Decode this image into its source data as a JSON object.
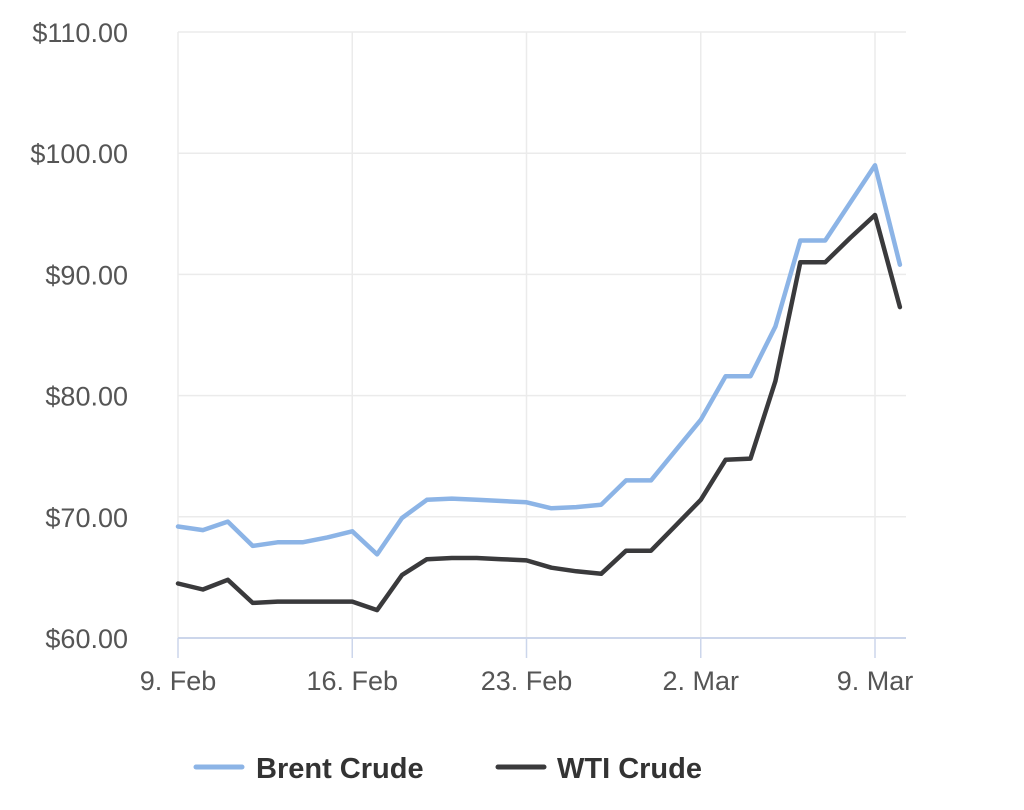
{
  "chart_data": {
    "type": "line",
    "x": [
      "2022-02-09",
      "2022-02-10",
      "2022-02-11",
      "2022-02-12",
      "2022-02-13",
      "2022-02-14",
      "2022-02-15",
      "2022-02-16",
      "2022-02-17",
      "2022-02-18",
      "2022-02-19",
      "2022-02-20",
      "2022-02-21",
      "2022-02-22",
      "2022-02-23",
      "2022-02-24",
      "2022-02-25",
      "2022-02-26",
      "2022-02-27",
      "2022-02-28",
      "2022-03-01",
      "2022-03-02",
      "2022-03-03",
      "2022-03-04",
      "2022-03-05",
      "2022-03-06",
      "2022-03-07",
      "2022-03-08",
      "2022-03-09",
      "2022-03-10"
    ],
    "series": [
      {
        "name": "Brent Crude",
        "color": "#8cb4e6",
        "values": [
          69.2,
          68.9,
          69.6,
          67.6,
          67.9,
          67.9,
          68.3,
          68.8,
          66.9,
          69.9,
          71.4,
          71.5,
          71.4,
          71.3,
          71.2,
          70.7,
          70.8,
          71.0,
          73.0,
          73.0,
          75.5,
          78.0,
          81.6,
          81.6,
          85.7,
          92.8,
          92.8,
          95.9,
          99.0,
          90.8
        ]
      },
      {
        "name": "WTI Crude",
        "color": "#3a3a3c",
        "values": [
          64.5,
          64.0,
          64.8,
          62.9,
          63.0,
          63.0,
          63.0,
          63.0,
          62.3,
          65.2,
          66.5,
          66.6,
          66.6,
          66.5,
          66.4,
          65.8,
          65.5,
          65.3,
          67.2,
          67.2,
          69.3,
          71.4,
          74.7,
          74.8,
          81.2,
          91.0,
          91.0,
          93.0,
          94.9,
          87.3
        ]
      }
    ],
    "ylim": [
      60,
      110
    ],
    "y_ticks": [
      "$60.00",
      "$70.00",
      "$80.00",
      "$90.00",
      "$100.00",
      "$110.00"
    ],
    "y_tick_values": [
      60,
      70,
      80,
      90,
      100,
      110
    ],
    "x_ticks": [
      "9. Feb",
      "16. Feb",
      "23. Feb",
      "2. Mar",
      "9. Mar"
    ],
    "x_tick_dates": [
      "2022-02-09",
      "2022-02-16",
      "2022-02-23",
      "2022-03-02",
      "2022-03-09"
    ],
    "grid": true,
    "legend_position": "bottom-center"
  }
}
